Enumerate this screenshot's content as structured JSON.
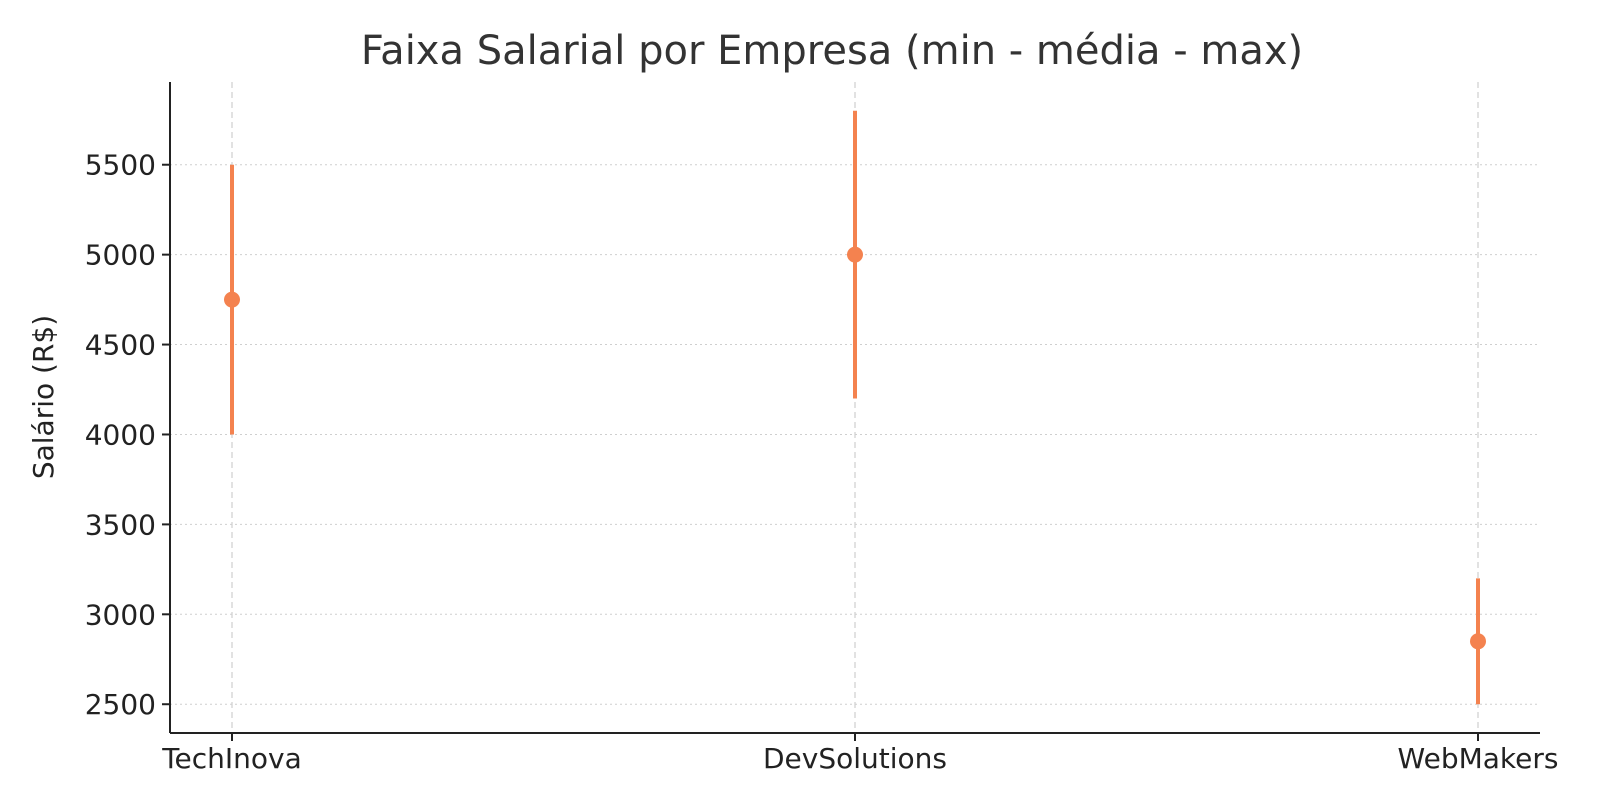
{
  "chart_data": {
    "type": "errorbar",
    "title": "Faixa Salarial por Empresa (min - média - max)",
    "xlabel": "",
    "ylabel": "Salário (R$)",
    "categories": [
      "TechInova",
      "DevSolutions",
      "WebMakers"
    ],
    "series": [
      {
        "min": [
          4000,
          4200,
          2500
        ],
        "mean": [
          4750,
          5000,
          2850
        ],
        "max": [
          5500,
          5800,
          3200
        ]
      }
    ],
    "ylim": [
      2340,
      5960
    ],
    "yticks": [
      2500,
      3000,
      3500,
      4000,
      4500,
      5000,
      5500
    ],
    "grid": {
      "y": "dotted",
      "x": "dashed"
    },
    "colors": {
      "series": "#f4824f",
      "grid": "#cfcfcf",
      "axis": "#222222",
      "title": "#333333"
    }
  }
}
